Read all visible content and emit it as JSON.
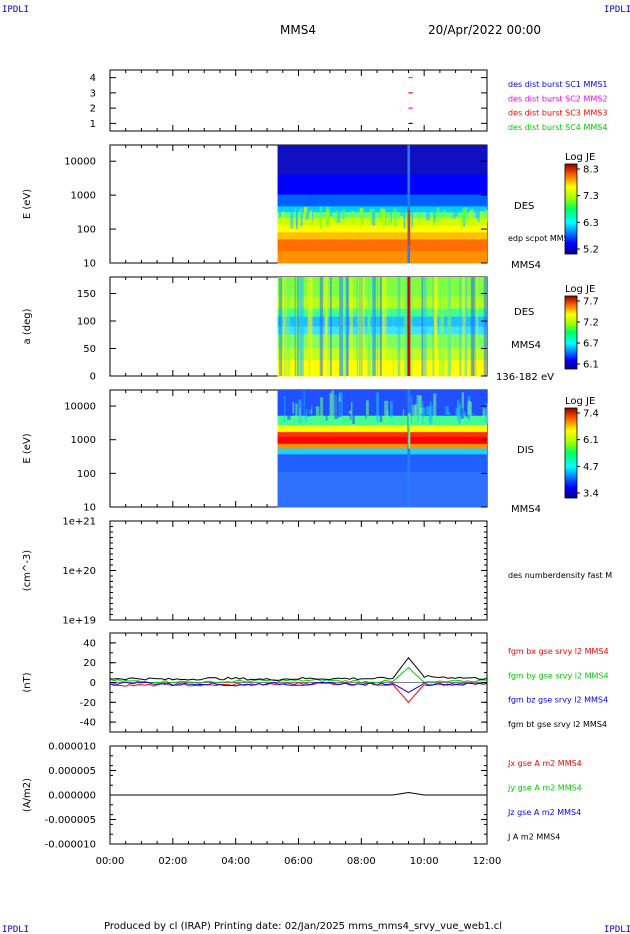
{
  "header": {
    "corner_tl": "IPDLI",
    "corner_tr": "IPDLI",
    "corner_bl": "IPDLI",
    "corner_br": "IPDLI",
    "title": "MMS4",
    "date": "20/Apr/2022 00:00"
  },
  "footer": {
    "text": "Produced by cl (IRAP)   Printing date: 02/Jan/2025   mms_mms4_srvy_vue_web1.cl"
  },
  "colors": {
    "blue": "#0000ff",
    "magenta": "#ff00ff",
    "red": "#ff0000",
    "green": "#00cc00",
    "black": "#000000"
  },
  "chart_data": [
    {
      "type": "scatter",
      "panel": "burst-availability",
      "xlim": [
        "00:00",
        "12:00"
      ],
      "ylim": [
        0.5,
        4.5
      ],
      "yticks": [
        "1",
        "2",
        "3",
        "4"
      ],
      "series": [
        {
          "name": "des dist burst SC1 MMS1",
          "color": "#0000ff",
          "y": 1,
          "x": [
            "09:30",
            "09:38"
          ]
        },
        {
          "name": "des dist burst SC2 MMS2",
          "color": "#ff00ff",
          "y": 2,
          "x": [
            "09:30",
            "09:38"
          ]
        },
        {
          "name": "des dist burst SC3 MMS3",
          "color": "#ff0000",
          "y": 3,
          "x": [
            "09:30",
            "09:38"
          ]
        },
        {
          "name": "des dist burst SC4 MMS4",
          "color": "#00cc00",
          "y": 4,
          "x": [
            "09:30",
            "09:38"
          ]
        }
      ]
    },
    {
      "type": "heatmap",
      "panel": "des-energy",
      "ylabel": "E (eV)",
      "yscale": "log",
      "ylim": [
        10,
        30000
      ],
      "yticks": [
        "10",
        "100",
        "1000",
        "10000"
      ],
      "data_start": "05:20",
      "spike_time": "09:30",
      "label_species": "DES",
      "label_extra": "edp scpot MMS4",
      "label_sc": "MMS4",
      "colorbar": {
        "title": "Log JE",
        "ticks": [
          "8.3",
          "7.3",
          "6.3",
          "5.2"
        ],
        "range": [
          5.2,
          8.3
        ]
      }
    },
    {
      "type": "heatmap",
      "panel": "des-pitch",
      "ylabel": "a (deg)",
      "ylim": [
        0,
        180
      ],
      "yticks": [
        "0",
        "50",
        "100",
        "150"
      ],
      "data_start": "05:20",
      "spike_time": "09:30",
      "label_species": "DES",
      "label_sc": "MMS4",
      "label_energy": "136-182 eV",
      "colorbar": {
        "title": "Log JE",
        "ticks": [
          "7.7",
          "7.2",
          "6.7",
          "6.1"
        ],
        "range": [
          6.1,
          7.7
        ]
      }
    },
    {
      "type": "heatmap",
      "panel": "dis-energy",
      "ylabel": "E (eV)",
      "yscale": "log",
      "ylim": [
        10,
        30000
      ],
      "yticks": [
        "10",
        "100",
        "1000",
        "10000"
      ],
      "data_start": "05:20",
      "spike_time": "09:30",
      "label_species": "DIS",
      "label_sc": "MMS4",
      "colorbar": {
        "title": "Log JE",
        "ticks": [
          "7.4",
          "6.1",
          "4.7",
          "3.4"
        ],
        "range": [
          3.4,
          7.4
        ]
      }
    },
    {
      "type": "line",
      "panel": "density",
      "ylabel": "(cm^-3)",
      "yscale": "log",
      "ylim": [
        1e+19,
        1e+21
      ],
      "yticks": [
        "1e+19",
        "1e+20",
        "1e+21"
      ],
      "series": [
        {
          "name": "des numberdensity fast M",
          "values": []
        }
      ]
    },
    {
      "type": "line",
      "panel": "magnetic-field",
      "ylabel": "(nT)",
      "ylim": [
        -50,
        50
      ],
      "yticks": [
        "-40",
        "-20",
        "0",
        "20",
        "40"
      ],
      "x": [
        "00:00",
        "01:00",
        "02:00",
        "03:00",
        "04:00",
        "05:00",
        "06:00",
        "07:00",
        "08:00",
        "09:00",
        "09:30",
        "10:00",
        "11:00",
        "12:00"
      ],
      "series": [
        {
          "name": "fgm bx gse srvy l2 MMS4",
          "color": "#ff0000",
          "values": [
            -2,
            -3,
            -2,
            -3,
            -2,
            -2,
            -1,
            -1,
            -1,
            -2,
            -20,
            -2,
            -2,
            -1
          ]
        },
        {
          "name": "fgm by gse srvy l2 MMS4",
          "color": "#00cc00",
          "values": [
            2,
            1,
            1,
            0,
            1,
            2,
            2,
            2,
            1,
            1,
            15,
            0,
            1,
            2
          ]
        },
        {
          "name": "fgm bz gse srvy l2 MMS4",
          "color": "#0000ff",
          "values": [
            -1,
            0,
            -2,
            -1,
            -3,
            -1,
            -2,
            -1,
            -2,
            -1,
            -10,
            -1,
            -2,
            -1
          ]
        },
        {
          "name": "fgm bt gse srvy l2 MMS4",
          "color": "#000000",
          "values": [
            4,
            4,
            3,
            4,
            4,
            3,
            4,
            4,
            4,
            4,
            25,
            6,
            5,
            4
          ]
        }
      ]
    },
    {
      "type": "line",
      "panel": "current-density",
      "ylabel": "(A/m2)",
      "ylim": [
        -1e-05,
        1e-05
      ],
      "yticks": [
        "0.000010",
        "0.000005",
        "0.000000",
        "-0.000005",
        "-0.000010"
      ],
      "xticks": [
        "00:00",
        "02:00",
        "04:00",
        "06:00",
        "08:00",
        "10:00",
        "12:00"
      ],
      "series": [
        {
          "name": "Jx gse A m2 MMS4",
          "color": "#ff0000"
        },
        {
          "name": "Jy gse A m2 MMS4",
          "color": "#00cc00"
        },
        {
          "name": "Jz gse A m2 MMS4",
          "color": "#0000ff"
        },
        {
          "name": "J A m2 MMS4",
          "color": "#000000",
          "values": [
            0,
            0,
            0,
            0,
            0,
            0,
            0,
            0,
            0,
            0,
            5e-07,
            0,
            0,
            0
          ]
        }
      ]
    }
  ]
}
